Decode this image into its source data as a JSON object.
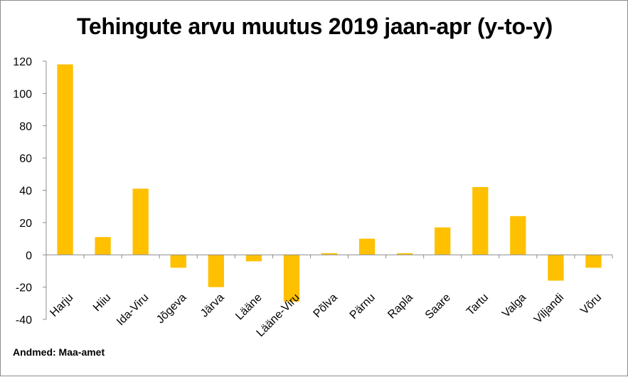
{
  "title": "Tehingute arvu muutus 2019 jaan-apr (y-to-y)",
  "source": "Andmed: Maa-amet",
  "colors": {
    "bar": "#FFC000",
    "axis": "#8c8c8c"
  },
  "chart_data": {
    "type": "bar",
    "title": "Tehingute arvu muutus 2019 jaan-apr (y-to-y)",
    "categories": [
      "Harju",
      "Hiiu",
      "Ida-Viru",
      "Jõgeva",
      "Järva",
      "Lääne",
      "Lääne-Viru",
      "Põlva",
      "Pärnu",
      "Rapla",
      "Saare",
      "Tartu",
      "Valga",
      "Viljandi",
      "Võru"
    ],
    "values": [
      118,
      11,
      41,
      -8,
      -20,
      -4,
      -29,
      1,
      10,
      1,
      17,
      42,
      24,
      -16,
      -8
    ],
    "ylim": [
      -40,
      120
    ],
    "yticks": [
      -40,
      -20,
      0,
      20,
      40,
      60,
      80,
      100,
      120
    ],
    "xlabel": "",
    "ylabel": "",
    "grid": false,
    "legend": "none"
  }
}
